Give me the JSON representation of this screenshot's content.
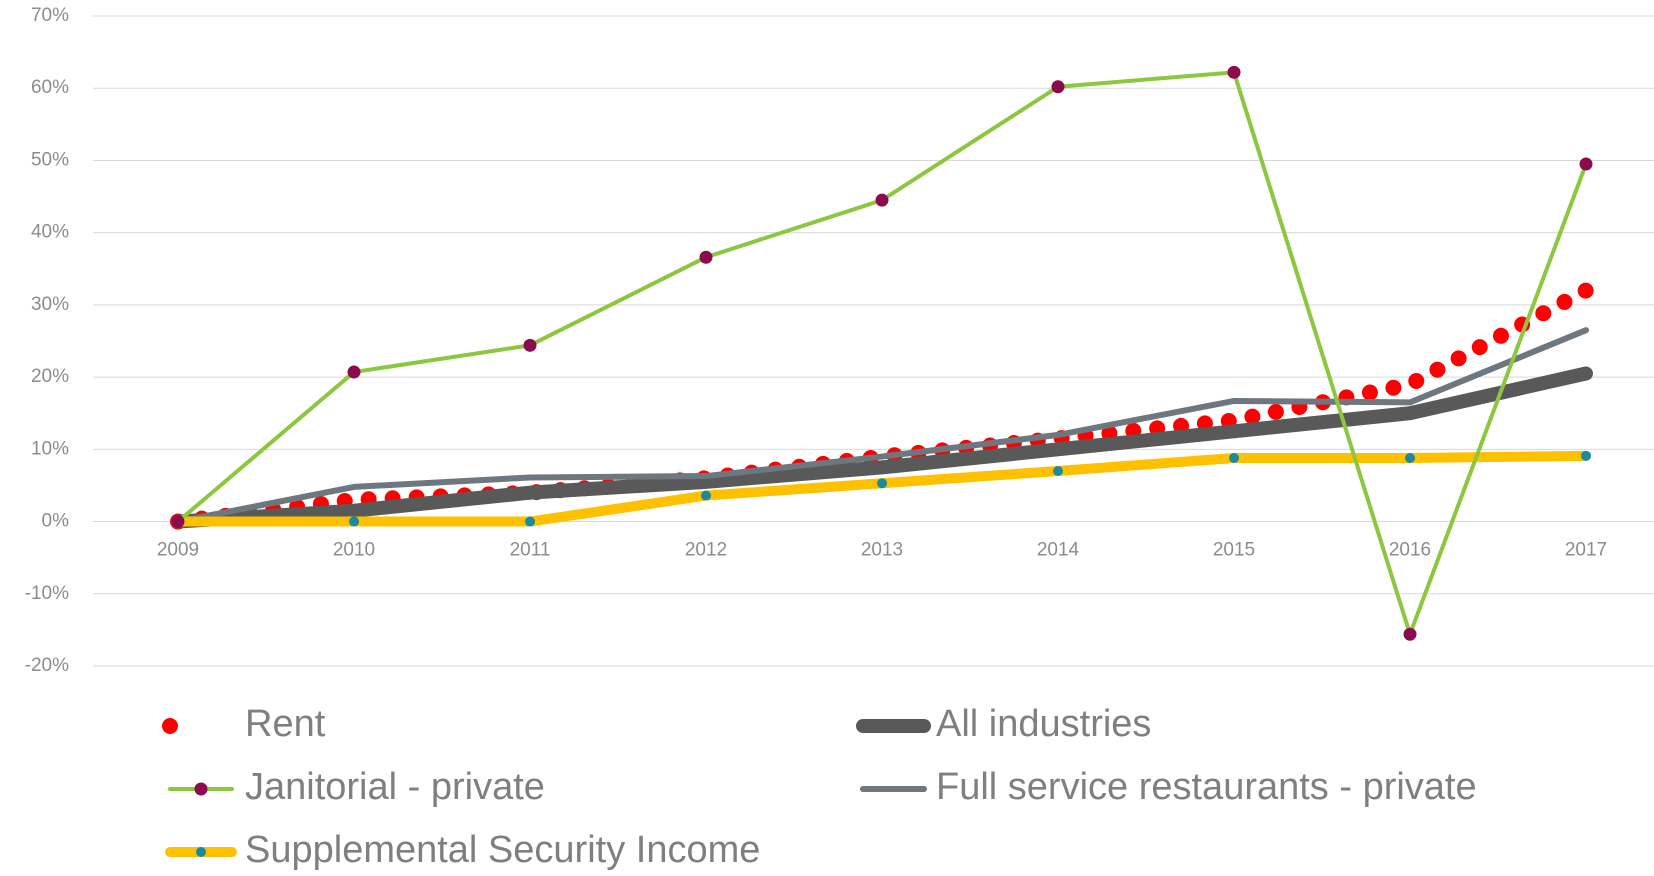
{
  "chart_data": {
    "type": "line",
    "categories": [
      "2009",
      "2010",
      "2011",
      "2012",
      "2013",
      "2014",
      "2015",
      "2016",
      "2017"
    ],
    "ylim": [
      -20,
      70
    ],
    "yticks": [
      {
        "value": -20,
        "label": "-20%"
      },
      {
        "value": -10,
        "label": "-10%"
      },
      {
        "value": 0,
        "label": "0%"
      },
      {
        "value": 10,
        "label": "10%"
      },
      {
        "value": 20,
        "label": "20%"
      },
      {
        "value": 30,
        "label": "30%"
      },
      {
        "value": 40,
        "label": "40%"
      },
      {
        "value": 50,
        "label": "50%"
      },
      {
        "value": 60,
        "label": "60%"
      },
      {
        "value": 70,
        "label": "70%"
      }
    ],
    "grid": true,
    "legend": "bottom",
    "series": [
      {
        "name": "Rent",
        "color": "#ff0000",
        "style": "dotted",
        "values": [
          0,
          3,
          4,
          6,
          9,
          11.5,
          14,
          19,
          32
        ]
      },
      {
        "name": "All industries",
        "color": "#595959",
        "values": [
          0,
          1.5,
          4,
          5.5,
          7.5,
          10,
          12.5,
          15,
          20.5
        ]
      },
      {
        "name": "Janitorial - private",
        "color": "#8dc63f",
        "marker_color": "#8b0b4e",
        "values": [
          0,
          20.7,
          24.4,
          36.6,
          44.5,
          60.2,
          62.2,
          -15.6,
          49.5
        ]
      },
      {
        "name": "Full service restaurants - private",
        "color": "#6d7780",
        "values": [
          0,
          4.8,
          6.1,
          6.3,
          9,
          12,
          16.7,
          16.5,
          26.5
        ]
      },
      {
        "name": "Supplemental Security Income",
        "color": "#ffc000",
        "marker_color": "#1a8a9e",
        "values": [
          0,
          0,
          0,
          3.6,
          5.3,
          7,
          8.8,
          8.8,
          9.1
        ]
      }
    ]
  }
}
